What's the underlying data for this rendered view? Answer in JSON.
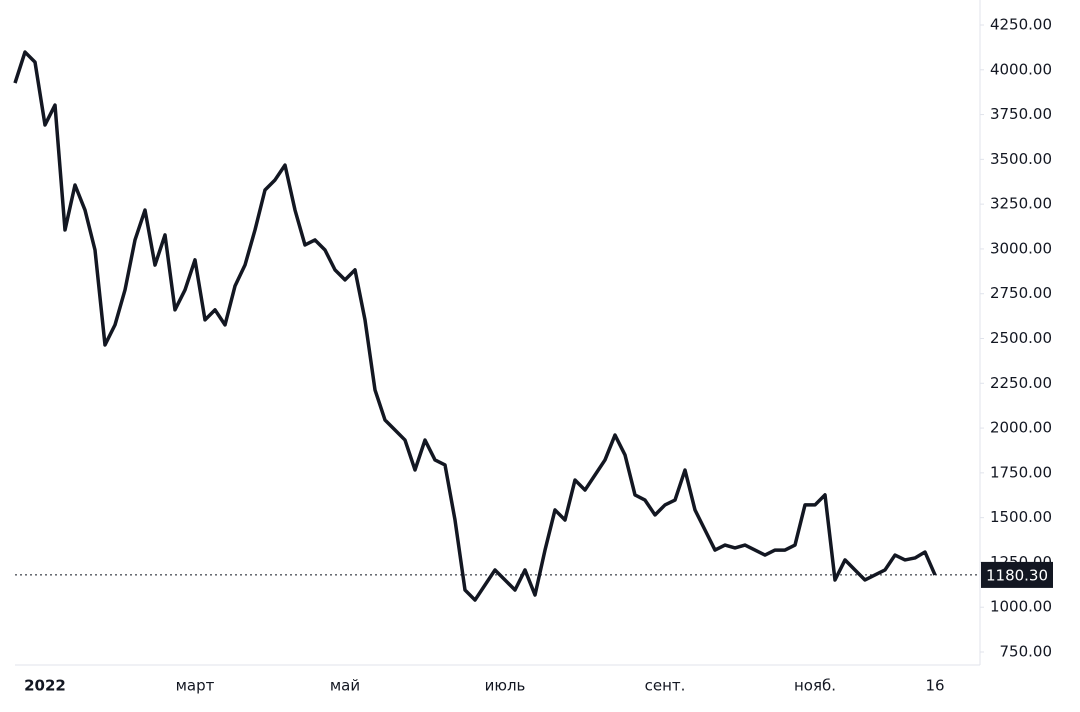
{
  "chart_data": {
    "type": "line",
    "categories": [
      null,
      null,
      null,
      "2022",
      null,
      null,
      null,
      null,
      null,
      null,
      null,
      null,
      null,
      null,
      null,
      null,
      null,
      null,
      "март",
      null,
      null,
      null,
      null,
      null,
      null,
      null,
      null,
      null,
      null,
      null,
      null,
      null,
      null,
      "май",
      null,
      null,
      null,
      null,
      null,
      null,
      null,
      null,
      null,
      null,
      null,
      null,
      null,
      null,
      null,
      "июль",
      null,
      null,
      null,
      null,
      null,
      null,
      null,
      null,
      null,
      null,
      null,
      null,
      null,
      null,
      null,
      "сент.",
      null,
      null,
      null,
      null,
      null,
      null,
      null,
      null,
      null,
      null,
      null,
      null,
      null,
      null,
      "нояб.",
      null,
      null,
      null,
      null,
      null,
      null,
      null,
      null,
      null,
      null,
      null,
      "16"
    ],
    "series": [
      {
        "color": "#131722",
        "values": [
          3926,
          4099,
          4043,
          3692,
          3803,
          3106,
          3357,
          3217,
          2994,
          2464,
          2576,
          2771,
          3050,
          3217,
          2910,
          3078,
          2660,
          2771,
          2939,
          2604,
          2660,
          2576,
          2793,
          2910,
          3106,
          3329,
          3385,
          3468,
          3217,
          3022,
          3050,
          2994,
          2883,
          2827,
          2883,
          2604,
          2213,
          2045,
          1989,
          1933,
          1766,
          1933,
          1822,
          1794,
          1487,
          1096,
          1040,
          1124,
          1208,
          1152,
          1096,
          1208,
          1068,
          1319,
          1543,
          1487,
          1710,
          1654,
          1738,
          1822,
          1961,
          1850,
          1627,
          1598,
          1515,
          1571,
          1598,
          1766,
          1543,
          1431,
          1319,
          1347,
          1331,
          1347,
          1319,
          1291,
          1319,
          1319,
          1347,
          1571,
          1571,
          1627,
          1152,
          1264,
          1208,
          1152,
          1180,
          1208,
          1291,
          1264,
          1275,
          1308,
          1180.3
        ]
      }
    ],
    "last_price_label": "1180.30",
    "ylim": [
      750,
      4250
    ],
    "yticks": [
      {
        "value": 750,
        "label": "750.00"
      },
      {
        "value": 1000,
        "label": "1000.00"
      },
      {
        "value": 1250,
        "label": "1250.00"
      },
      {
        "value": 1500,
        "label": "1500.00"
      },
      {
        "value": 1750,
        "label": "1750.00"
      },
      {
        "value": 2000,
        "label": "2000.00"
      },
      {
        "value": 2250,
        "label": "2250.00"
      },
      {
        "value": 2500,
        "label": "2500.00"
      },
      {
        "value": 2750,
        "label": "2750.00"
      },
      {
        "value": 3000,
        "label": "3000.00"
      },
      {
        "value": 3250,
        "label": "3250.00"
      },
      {
        "value": 3500,
        "label": "3500.00"
      },
      {
        "value": 3750,
        "label": "3750.00"
      },
      {
        "value": 4000,
        "label": "4000.00"
      },
      {
        "value": 4250,
        "label": "4250.00"
      }
    ],
    "position": "right"
  }
}
